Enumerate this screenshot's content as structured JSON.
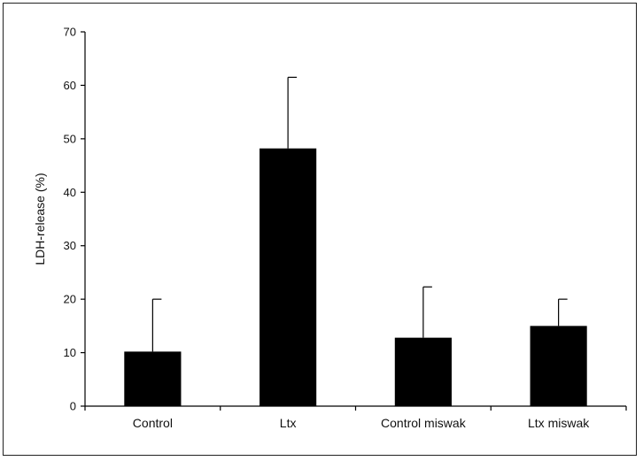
{
  "chart_data": {
    "type": "bar",
    "title": "",
    "xlabel": "",
    "ylabel": "LDH-release (%)",
    "ylim": [
      0,
      70
    ],
    "yticks": [
      0,
      10,
      20,
      30,
      40,
      50,
      60,
      70
    ],
    "grid": false,
    "legend": "none",
    "bar_color": "#000000",
    "categories": [
      "Control",
      "Ltx",
      "Control miswak",
      "Ltx miswak"
    ],
    "values": [
      10.2,
      48.2,
      12.8,
      15.0
    ],
    "error_upper": [
      20.0,
      61.5,
      22.3,
      20.0
    ]
  }
}
